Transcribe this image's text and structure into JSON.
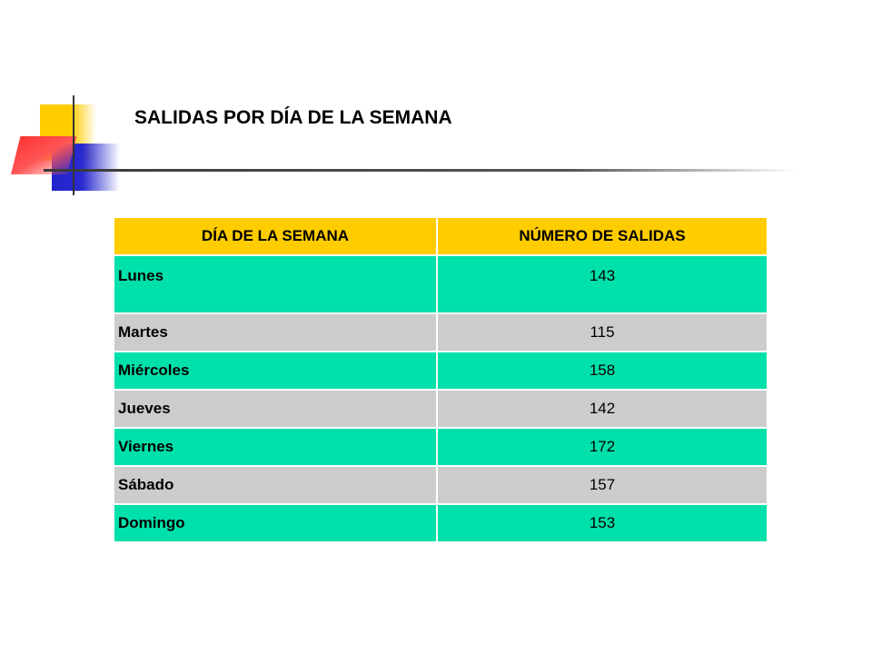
{
  "slide": {
    "title": "SALIDAS POR DÍA DE LA SEMANA"
  },
  "table": {
    "headers": [
      "DÍA DE LA SEMANA",
      "NÚMERO DE SALIDAS"
    ],
    "rows": [
      {
        "day": "Lunes",
        "value": "143"
      },
      {
        "day": "Martes",
        "value": "115"
      },
      {
        "day": "Miércoles",
        "value": "158"
      },
      {
        "day": "Jueves",
        "value": "142"
      },
      {
        "day": "Viernes",
        "value": "172"
      },
      {
        "day": "Sábado",
        "value": "157"
      },
      {
        "day": "Domingo",
        "value": "153"
      }
    ]
  },
  "colors": {
    "header_bg": "#ffcc00",
    "row_green": "#00e0aa",
    "row_gray": "#cccccc"
  }
}
